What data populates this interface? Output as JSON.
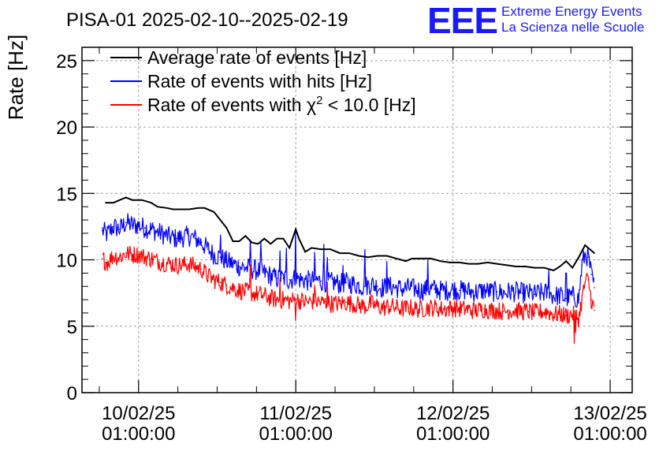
{
  "chart_data": {
    "type": "line",
    "title": "PISA-01 2025-02-10--2025-02-19",
    "ylabel": "Rate [Hz]",
    "xlabel": "",
    "ylim": [
      0,
      26
    ],
    "yticks": [
      "0",
      "5",
      "10",
      "15",
      "20",
      "25"
    ],
    "x_tick_labels": [
      {
        "date": "10/02/25",
        "time": "01:00:00"
      },
      {
        "date": "11/02/25",
        "time": "01:00:00"
      },
      {
        "date": "12/02/25",
        "time": "01:00:00"
      },
      {
        "date": "13/02/25",
        "time": "01:00:00"
      }
    ],
    "x_unit": "days",
    "xlim": [
      9.64,
      13.14
    ],
    "grid": true,
    "legend_position": "top-left",
    "series": [
      {
        "name": "Average rate of events [Hz]",
        "color": "#000000",
        "x": [
          9.79,
          9.84,
          9.88,
          9.92,
          9.96,
          10.02,
          10.08,
          10.12,
          10.18,
          10.22,
          10.28,
          10.32,
          10.38,
          10.42,
          10.48,
          10.52,
          10.56,
          10.6,
          10.64,
          10.68,
          10.72,
          10.76,
          10.8,
          10.84,
          10.88,
          10.92,
          10.96,
          11.0,
          11.02,
          11.06,
          11.1,
          11.16,
          11.22,
          11.28,
          11.34,
          11.4,
          11.46,
          11.52,
          11.58,
          11.64,
          11.7,
          11.74,
          11.8,
          11.86,
          11.92,
          11.98,
          12.04,
          12.1,
          12.16,
          12.22,
          12.28,
          12.34,
          12.4,
          12.46,
          12.52,
          12.58,
          12.64,
          12.68,
          12.72,
          12.76,
          12.8,
          12.84,
          12.86,
          12.9
        ],
        "y": [
          14.3,
          14.3,
          14.5,
          14.7,
          14.5,
          14.5,
          14.3,
          14.0,
          13.9,
          13.8,
          13.8,
          13.8,
          13.9,
          13.9,
          13.6,
          13.0,
          12.4,
          11.4,
          11.4,
          11.8,
          11.3,
          11.2,
          11.6,
          11.2,
          11.6,
          11.6,
          10.9,
          12.3,
          11.6,
          10.6,
          10.9,
          10.8,
          10.8,
          10.5,
          10.5,
          10.3,
          10.2,
          10.3,
          10.3,
          10.1,
          9.9,
          10.1,
          10.1,
          10.1,
          9.9,
          9.8,
          9.8,
          9.7,
          9.7,
          9.8,
          9.7,
          9.6,
          9.5,
          9.5,
          9.4,
          9.4,
          9.2,
          9.5,
          9.9,
          9.4,
          10.2,
          11.1,
          10.9,
          10.5
        ]
      },
      {
        "name": "Rate of events with hits [Hz]",
        "color": "#0000ff",
        "x": [
          9.77,
          9.8,
          9.84,
          9.88,
          9.92,
          9.96,
          10.0,
          10.04,
          10.08,
          10.12,
          10.16,
          10.2,
          10.24,
          10.28,
          10.32,
          10.36,
          10.4,
          10.44,
          10.48,
          10.52,
          10.56,
          10.6,
          10.64,
          10.68,
          10.72,
          10.76,
          10.8,
          10.84,
          10.88,
          10.92,
          10.96,
          11.0,
          11.04,
          11.08,
          11.12,
          11.16,
          11.2,
          11.24,
          11.28,
          11.32,
          11.36,
          11.4,
          11.44,
          11.48,
          11.52,
          11.56,
          11.6,
          11.64,
          11.68,
          11.72,
          11.76,
          11.8,
          11.84,
          11.88,
          11.92,
          11.96,
          12.0,
          12.04,
          12.08,
          12.12,
          12.16,
          12.2,
          12.24,
          12.28,
          12.32,
          12.36,
          12.4,
          12.44,
          12.48,
          12.52,
          12.56,
          12.6,
          12.64,
          12.68,
          12.72,
          12.76,
          12.8,
          12.82,
          12.84,
          12.86,
          12.88,
          12.9
        ],
        "y": [
          12.2,
          11.9,
          12.5,
          12.3,
          12.8,
          12.6,
          12.6,
          12.4,
          12.3,
          12.1,
          11.9,
          11.7,
          11.6,
          11.7,
          11.8,
          11.6,
          11.3,
          10.8,
          10.4,
          10.2,
          9.9,
          9.7,
          9.5,
          9.4,
          9.3,
          9.2,
          9.0,
          8.8,
          8.6,
          8.6,
          8.5,
          8.6,
          8.5,
          8.4,
          8.5,
          8.4,
          8.3,
          8.3,
          8.2,
          8.3,
          8.2,
          8.1,
          8.0,
          8.2,
          8.0,
          7.9,
          8.0,
          7.9,
          7.8,
          7.9,
          7.8,
          7.7,
          7.8,
          7.8,
          7.7,
          7.7,
          7.8,
          7.7,
          7.7,
          7.6,
          7.6,
          7.7,
          7.6,
          7.6,
          7.5,
          7.6,
          7.6,
          7.5,
          7.5,
          7.4,
          7.5,
          7.5,
          7.3,
          7.3,
          7.1,
          7.3,
          7.0,
          9.6,
          10.4,
          10.2,
          8.9,
          7.9
        ],
        "spikes": [
          [
            10.52,
            11.9
          ],
          [
            10.71,
            11.5
          ],
          [
            10.78,
            11.4
          ],
          [
            10.9,
            10.7
          ],
          [
            10.94,
            10.9
          ],
          [
            11.0,
            12.3
          ],
          [
            11.08,
            9.2
          ],
          [
            11.12,
            10.6
          ],
          [
            11.18,
            11.2
          ],
          [
            11.2,
            10.2
          ],
          [
            11.3,
            9.6
          ],
          [
            11.44,
            10.8
          ],
          [
            11.58,
            9.9
          ],
          [
            11.84,
            10.0
          ],
          [
            12.61,
            9.3
          ],
          [
            12.72,
            9.0
          ]
        ],
        "jitter": 0.8
      },
      {
        "name": "Rate of events with χ² < 10.0 [Hz]",
        "name_prefix": "Rate of events with ",
        "name_symbol": "χ",
        "name_sup": "2",
        "name_suffix": " < 10.0 [Hz]",
        "color": "#ff0000",
        "x": [
          9.77,
          9.8,
          9.84,
          9.88,
          9.92,
          9.96,
          10.0,
          10.04,
          10.08,
          10.12,
          10.16,
          10.2,
          10.24,
          10.28,
          10.32,
          10.36,
          10.4,
          10.44,
          10.48,
          10.52,
          10.56,
          10.6,
          10.64,
          10.68,
          10.72,
          10.76,
          10.8,
          10.84,
          10.88,
          10.92,
          10.96,
          11.0,
          11.04,
          11.08,
          11.12,
          11.16,
          11.2,
          11.24,
          11.28,
          11.32,
          11.36,
          11.4,
          11.44,
          11.48,
          11.52,
          11.56,
          11.6,
          11.64,
          11.68,
          11.72,
          11.76,
          11.8,
          11.84,
          11.88,
          11.92,
          11.96,
          12.0,
          12.04,
          12.08,
          12.12,
          12.16,
          12.2,
          12.24,
          12.28,
          12.32,
          12.36,
          12.4,
          12.44,
          12.48,
          12.52,
          12.56,
          12.6,
          12.64,
          12.68,
          12.72,
          12.76,
          12.8,
          12.82,
          12.84,
          12.86,
          12.88,
          12.9
        ],
        "y": [
          10.1,
          9.8,
          10.3,
          10.2,
          10.5,
          10.4,
          10.4,
          10.2,
          10.1,
          9.9,
          9.8,
          9.7,
          9.6,
          9.6,
          9.7,
          9.5,
          9.3,
          8.8,
          8.5,
          8.3,
          8.1,
          7.9,
          7.7,
          7.6,
          7.5,
          7.4,
          7.3,
          7.1,
          7.0,
          7.0,
          6.9,
          7.0,
          6.9,
          6.8,
          6.9,
          6.8,
          6.7,
          6.7,
          6.7,
          6.8,
          6.7,
          6.6,
          6.5,
          6.7,
          6.5,
          6.4,
          6.5,
          6.4,
          6.3,
          6.4,
          6.3,
          6.3,
          6.4,
          6.4,
          6.3,
          6.3,
          6.4,
          6.3,
          6.3,
          6.2,
          6.2,
          6.3,
          6.2,
          6.2,
          6.1,
          6.2,
          6.2,
          6.1,
          6.1,
          6.0,
          6.1,
          6.1,
          5.9,
          5.9,
          5.8,
          5.9,
          5.6,
          7.0,
          8.3,
          8.5,
          7.0,
          6.2
        ],
        "spikes": [
          [
            10.71,
            9.7
          ],
          [
            10.9,
            8.6
          ],
          [
            11.0,
            9.9
          ],
          [
            11.0,
            5.4
          ],
          [
            11.12,
            8.1
          ],
          [
            11.2,
            8.3
          ],
          [
            12.77,
            3.7
          ],
          [
            12.78,
            4.5
          ]
        ],
        "jitter": 0.7
      }
    ]
  },
  "logo": {
    "mark": "EEE",
    "line1": "Extreme Energy Events",
    "line2": "La Scienza nelle Scuole",
    "color": "#1a1aff"
  }
}
